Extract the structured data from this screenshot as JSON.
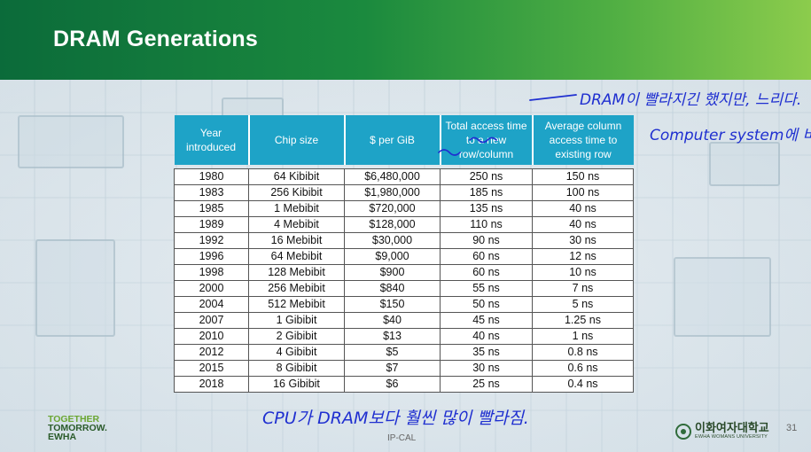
{
  "slide": {
    "title": "DRAM Generations",
    "page_number": "31",
    "footer_center": "IP-CAL"
  },
  "logo_left": {
    "line1": "TOGETHER",
    "line2": "TOMORROW.",
    "line3": "EWHA"
  },
  "logo_right": {
    "name_ko": "이화여자대학교",
    "name_en": "EWHA WOMANS UNIVERSITY"
  },
  "table": {
    "headers": [
      "Year introduced",
      "Chip size",
      "$ per GiB",
      "Total access time to a new row/column",
      "Average column access time to existing row"
    ],
    "rows": [
      [
        "1980",
        "64 Kibibit",
        "$6,480,000",
        "250 ns",
        "150 ns"
      ],
      [
        "1983",
        "256 Kibibit",
        "$1,980,000",
        "185 ns",
        "100 ns"
      ],
      [
        "1985",
        "1 Mebibit",
        "$720,000",
        "135 ns",
        "40 ns"
      ],
      [
        "1989",
        "4 Mebibit",
        "$128,000",
        "110 ns",
        "40 ns"
      ],
      [
        "1992",
        "16 Mebibit",
        "$30,000",
        "90 ns",
        "30 ns"
      ],
      [
        "1996",
        "64 Mebibit",
        "$9,000",
        "60 ns",
        "12 ns"
      ],
      [
        "1998",
        "128 Mebibit",
        "$900",
        "60 ns",
        "10 ns"
      ],
      [
        "2000",
        "256 Mebibit",
        "$840",
        "55 ns",
        "7 ns"
      ],
      [
        "2004",
        "512 Mebibit",
        "$150",
        "50 ns",
        "5 ns"
      ],
      [
        "2007",
        "1 Gibibit",
        "$40",
        "45 ns",
        "1.25 ns"
      ],
      [
        "2010",
        "2 Gibibit",
        "$13",
        "40 ns",
        "1 ns"
      ],
      [
        "2012",
        "4 Gibibit",
        "$5",
        "35 ns",
        "0.8 ns"
      ],
      [
        "2015",
        "8 Gibibit",
        "$7",
        "30 ns",
        "0.6 ns"
      ],
      [
        "2018",
        "16 Gibibit",
        "$6",
        "25 ns",
        "0.4 ns"
      ]
    ]
  },
  "annotations": {
    "note_top": "DRAM이 빨라지긴 했지만, 느리다.",
    "note_right": "Computer system에 비해.",
    "note_bottom": "CPU가 DRAM보다 훨씬 많이 빨라짐."
  },
  "colors": {
    "header_green": "#0b6b3a",
    "table_header": "#1ea3c7",
    "ink": "#1f2fd0"
  }
}
